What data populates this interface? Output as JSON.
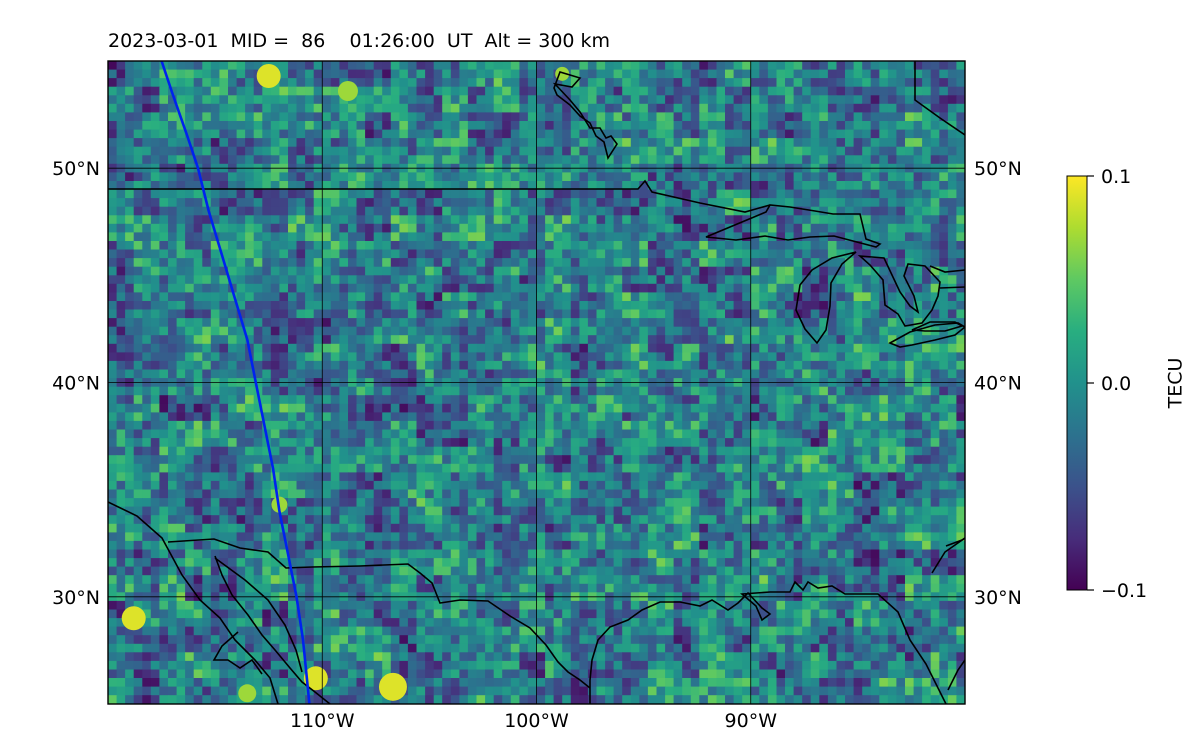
{
  "title": "2023-03-01  MID =  86    01:26:00  UT  Alt = 300 km",
  "map": {
    "lon_range": [
      -120,
      -80
    ],
    "lat_range": [
      25,
      55
    ],
    "grid_lines": true,
    "lat_ticks": [
      {
        "value": 50,
        "label": "50°N"
      },
      {
        "value": 40,
        "label": "40°N"
      },
      {
        "value": 30,
        "label": "30°N"
      }
    ],
    "lon_ticks": [
      {
        "value": -110,
        "label": "110°W"
      },
      {
        "value": -100,
        "label": "100°W"
      },
      {
        "value": -90,
        "label": "90°W"
      }
    ],
    "trajectory_color": "#0022ee",
    "trajectory": [
      [
        -117.5,
        55
      ],
      [
        -117.0,
        53.5
      ],
      [
        -116.3,
        51.5
      ],
      [
        -115.8,
        50.0
      ],
      [
        -115.3,
        48.0
      ],
      [
        -114.7,
        46.0
      ],
      [
        -114.1,
        44.0
      ],
      [
        -113.5,
        42.0
      ],
      [
        -113.1,
        40.0
      ],
      [
        -112.7,
        38.0
      ],
      [
        -112.3,
        36.0
      ],
      [
        -112.0,
        34.0
      ],
      [
        -111.6,
        32.0
      ],
      [
        -111.2,
        30.0
      ],
      [
        -110.9,
        28.0
      ],
      [
        -110.7,
        26.0
      ],
      [
        -110.6,
        25.0
      ]
    ]
  },
  "colorbar": {
    "label": "TECU",
    "colormap": "viridis",
    "vmin": -0.1,
    "vmax": 0.1,
    "ticks": [
      {
        "value": 0.1,
        "label": "0.1"
      },
      {
        "value": 0.0,
        "label": "0.0"
      },
      {
        "value": -0.1,
        "label": "−0.1"
      }
    ]
  }
}
